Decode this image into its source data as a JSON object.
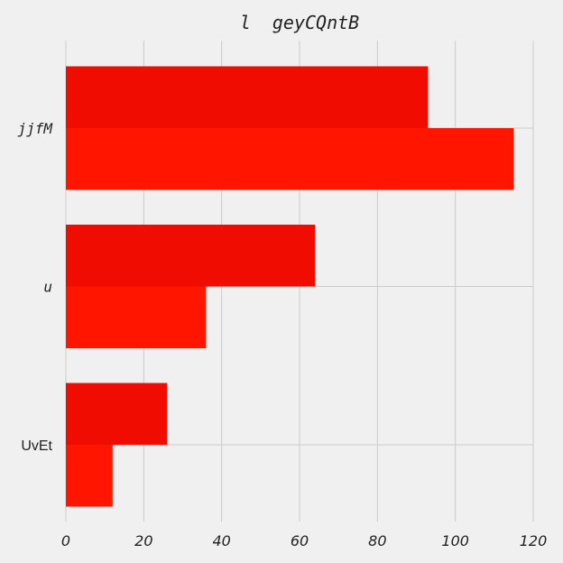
{
  "chart_data": {
    "type": "bar",
    "orientation": "horizontal",
    "title": "l  geyCQntB",
    "xlabel": "",
    "ylabel": "",
    "categories": [
      "jjfM",
      "u",
      "UvEt"
    ],
    "series": [
      {
        "values": [
          93,
          64,
          26
        ],
        "color": "#f10c00"
      },
      {
        "values": [
          115,
          36,
          12
        ],
        "color": "#ff1500"
      }
    ],
    "xlim": [
      0,
      120
    ],
    "xticks": [
      "0",
      "20",
      "40",
      "60",
      "80",
      "100",
      "120"
    ],
    "grid": true,
    "legend": "none"
  }
}
